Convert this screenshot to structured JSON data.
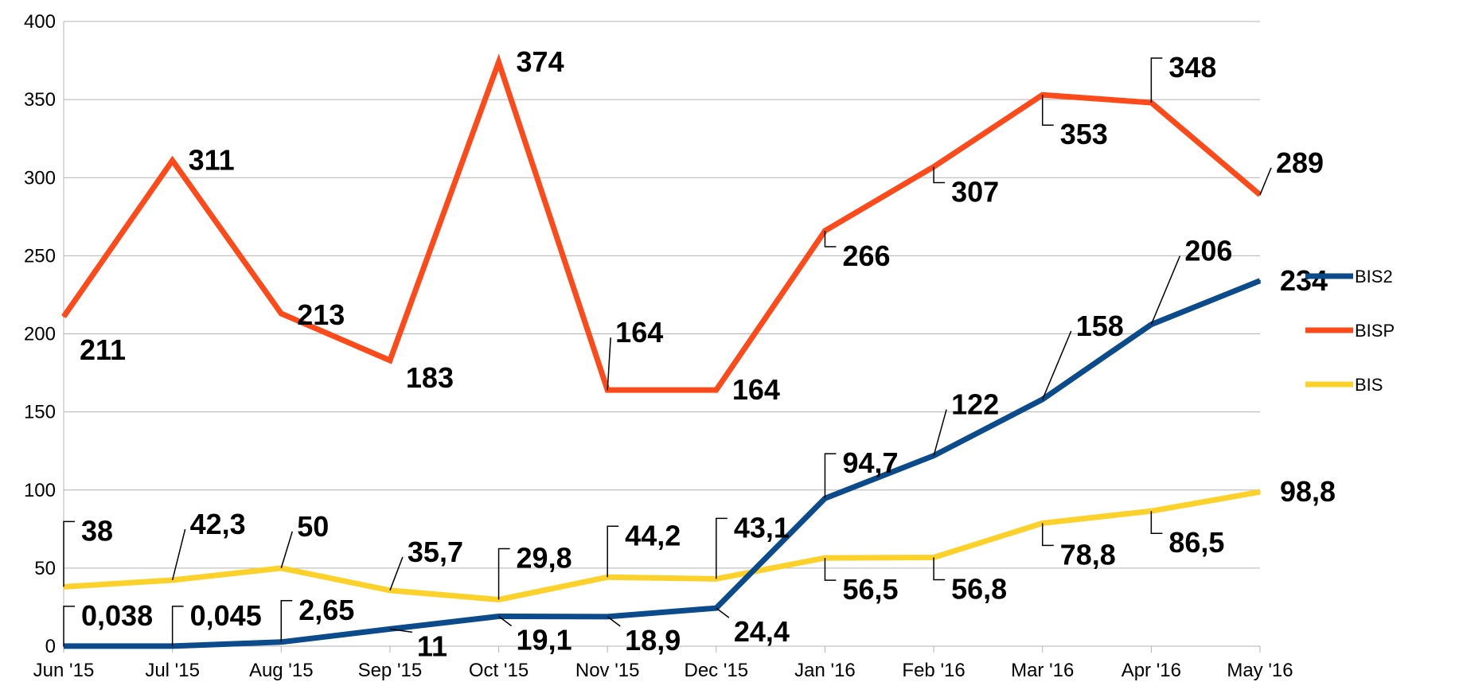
{
  "chart_data": {
    "type": "line",
    "title": "",
    "xlabel": "",
    "ylabel": "",
    "ylim": [
      0,
      400
    ],
    "yticks": [
      0,
      50,
      100,
      150,
      200,
      250,
      300,
      350,
      400
    ],
    "grid": true,
    "legend_position": "right",
    "categories": [
      "Jun '15",
      "Jul '15",
      "Aug '15",
      "Sep '15",
      "Oct '15",
      "Nov '15",
      "Dec '15",
      "Jan '16",
      "Feb '16",
      "Mar '16",
      "Apr '16",
      "May '16"
    ],
    "series": [
      {
        "name": "BIS2",
        "color": "#0b4a8b",
        "values": [
          0.038,
          0.045,
          2.65,
          11,
          19.1,
          18.9,
          24.4,
          94.7,
          122,
          158,
          206,
          234
        ],
        "labels": [
          "0,038",
          "0,045",
          "2,65",
          "11",
          "19,1",
          "18,9",
          "24,4",
          "94,7",
          "122",
          "158",
          "206",
          "234"
        ]
      },
      {
        "name": "BISP",
        "color": "#fc4a1a",
        "values": [
          211,
          311,
          213,
          183,
          374,
          164,
          164,
          266,
          307,
          353,
          348,
          289
        ],
        "labels": [
          "211",
          "311",
          "213",
          "183",
          "374",
          "164",
          "164",
          "266",
          "307",
          "353",
          "348",
          "289"
        ]
      },
      {
        "name": "BIS",
        "color": "#fcd12a",
        "values": [
          38,
          42.3,
          50,
          35.7,
          29.8,
          44.2,
          43.1,
          56.5,
          56.8,
          78.8,
          86.5,
          98.8
        ],
        "labels": [
          "38",
          "42,3",
          "50",
          "35,7",
          "29,8",
          "44,2",
          "43,1",
          "56,5",
          "56,8",
          "78,8",
          "86,5",
          "98,8"
        ]
      }
    ]
  }
}
